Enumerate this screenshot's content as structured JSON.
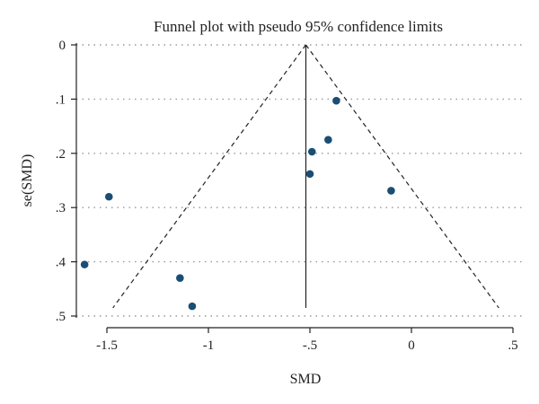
{
  "chart_data": {
    "type": "scatter",
    "title": "Funnel plot with pseudo 95% confidence limits",
    "xlabel": "SMD",
    "ylabel": "se(SMD)",
    "xlim": [
      -1.65,
      0.5
    ],
    "ylim": [
      0,
      0.5
    ],
    "y_axis_inverted": true,
    "grid": "horizontal dotted",
    "x_ticks": [
      {
        "value": -1.5,
        "label": "-1.5"
      },
      {
        "value": -1,
        "label": "-1"
      },
      {
        "value": -0.5,
        "label": "-.5"
      },
      {
        "value": 0,
        "label": "0"
      },
      {
        "value": 0.5,
        "label": ".5"
      }
    ],
    "y_ticks": [
      {
        "value": 0,
        "label": "0"
      },
      {
        "value": 0.1,
        "label": ".1"
      },
      {
        "value": 0.2,
        "label": ".2"
      },
      {
        "value": 0.3,
        "label": ".3"
      },
      {
        "value": 0.4,
        "label": ".4"
      },
      {
        "value": 0.5,
        "label": ".5"
      }
    ],
    "pooled_estimate": -0.52,
    "funnel_se_max": 0.485,
    "points": [
      {
        "x": -0.37,
        "y": 0.103
      },
      {
        "x": -0.41,
        "y": 0.175
      },
      {
        "x": -0.49,
        "y": 0.197
      },
      {
        "x": -0.5,
        "y": 0.238
      },
      {
        "x": -0.1,
        "y": 0.269
      },
      {
        "x": -1.49,
        "y": 0.28
      },
      {
        "x": -1.61,
        "y": 0.405
      },
      {
        "x": -1.14,
        "y": 0.43
      },
      {
        "x": -1.08,
        "y": 0.482
      }
    ],
    "colors": {
      "marker": "#1a4e75",
      "lines": "#222222",
      "grid": "#999999"
    }
  }
}
